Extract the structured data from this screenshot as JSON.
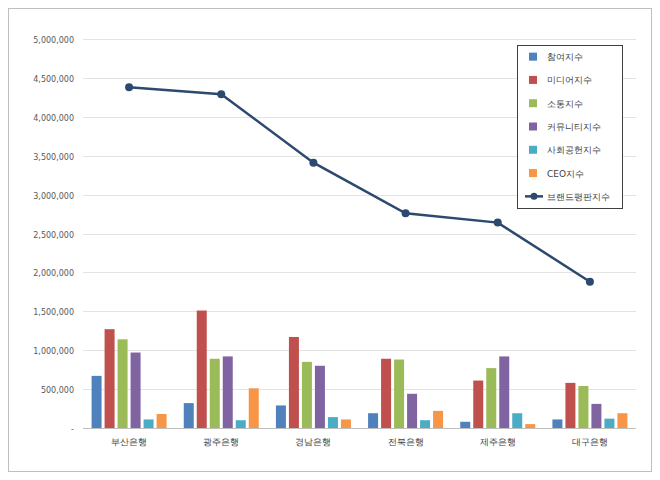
{
  "chart_data": {
    "type": "bar",
    "categories": [
      "부산은행",
      "광주은행",
      "경남은행",
      "전북은행",
      "제주은행",
      "대구은행"
    ],
    "series": [
      {
        "name": "참여지수",
        "type": "bar",
        "color": "#4f81bd",
        "values": [
          670000,
          320000,
          290000,
          190000,
          80000,
          110000
        ]
      },
      {
        "name": "미디어지수",
        "type": "bar",
        "color": "#c0504d",
        "values": [
          1270000,
          1510000,
          1170000,
          890000,
          610000,
          580000
        ]
      },
      {
        "name": "소통지수",
        "type": "bar",
        "color": "#9bbb59",
        "values": [
          1140000,
          890000,
          850000,
          880000,
          770000,
          540000
        ]
      },
      {
        "name": "커뮤니티지수",
        "type": "bar",
        "color": "#8064a2",
        "values": [
          970000,
          920000,
          800000,
          440000,
          920000,
          310000
        ]
      },
      {
        "name": "사회공헌지수",
        "type": "bar",
        "color": "#4bacc6",
        "values": [
          110000,
          100000,
          140000,
          100000,
          190000,
          120000
        ]
      },
      {
        "name": "CEO지수",
        "type": "bar",
        "color": "#f79646",
        "values": [
          180000,
          510000,
          110000,
          220000,
          50000,
          190000
        ]
      },
      {
        "name": "브랜드평판지수",
        "type": "line",
        "color": "#2c4a6e",
        "marker": "circle",
        "values": [
          4380000,
          4290000,
          3410000,
          2760000,
          2640000,
          1880000
        ]
      }
    ],
    "ylim": [
      0,
      5000000
    ],
    "yticks": [
      {
        "value": 0,
        "label": "-"
      },
      {
        "value": 500000,
        "label": "500,000"
      },
      {
        "value": 1000000,
        "label": "1,000,000"
      },
      {
        "value": 1500000,
        "label": "1,500,000"
      },
      {
        "value": 2000000,
        "label": "2,000,000"
      },
      {
        "value": 2500000,
        "label": "2,500,000"
      },
      {
        "value": 3000000,
        "label": "3,000,000"
      },
      {
        "value": 3500000,
        "label": "3,500,000"
      },
      {
        "value": 4000000,
        "label": "4,000,000"
      },
      {
        "value": 4500000,
        "label": "4,500,000"
      },
      {
        "value": 5000000,
        "label": "5,000,000"
      }
    ],
    "grid": true,
    "legend": "top-right"
  }
}
